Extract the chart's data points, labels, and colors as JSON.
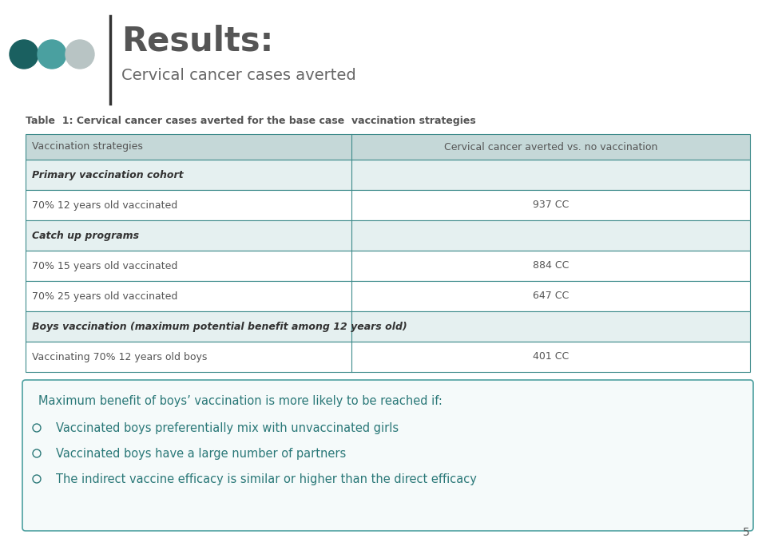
{
  "title_main": "Results:",
  "title_sub": "Cervical cancer cases averted",
  "table_title": "Table  1: Cervical cancer cases averted for the base case  vaccination strategies",
  "col1_header": "Vaccination strategies",
  "col2_header": "Cervical cancer averted vs. no vaccination",
  "rows": [
    {
      "type": "section",
      "col1": "Primary vaccination cohort",
      "col2": ""
    },
    {
      "type": "data",
      "col1": "70% 12 years old vaccinated",
      "col2": "937 CC"
    },
    {
      "type": "section",
      "col1": "Catch up programs",
      "col2": ""
    },
    {
      "type": "data",
      "col1": "70% 15 years old vaccinated",
      "col2": "884 CC"
    },
    {
      "type": "data",
      "col1": "70% 25 years old vaccinated",
      "col2": "647 CC"
    },
    {
      "type": "section",
      "col1": "Boys vaccination (maximum potential benefit among 12 years old)",
      "col2": ""
    },
    {
      "type": "data",
      "col1": "Vaccinating 70% 12 years old boys",
      "col2": "401 CC"
    }
  ],
  "box_title": "Maximum benefit of boys’ vaccination is more likely to be reached if:",
  "box_bullets": [
    "Vaccinated boys preferentially mix with unvaccinated girls",
    "Vaccinated boys have a large number of partners",
    "The indirect vaccine efficacy is similar or higher than the direct efficacy"
  ],
  "circle_colors": [
    "#1a6060",
    "#4aa0a0",
    "#b8c4c4"
  ],
  "teal_color": "#3d8b8b",
  "header_bg": "#c5d8d8",
  "section_bg": "#e5f0f0",
  "white_bg": "#ffffff",
  "box_border": "#4da0a0",
  "box_bg": "#f5fafa",
  "text_dark": "#555555",
  "text_teal": "#2a7878",
  "table_text_teal": "#3d8b8b",
  "page_num": "5",
  "figw": 9.59,
  "figh": 6.79,
  "dpi": 100
}
